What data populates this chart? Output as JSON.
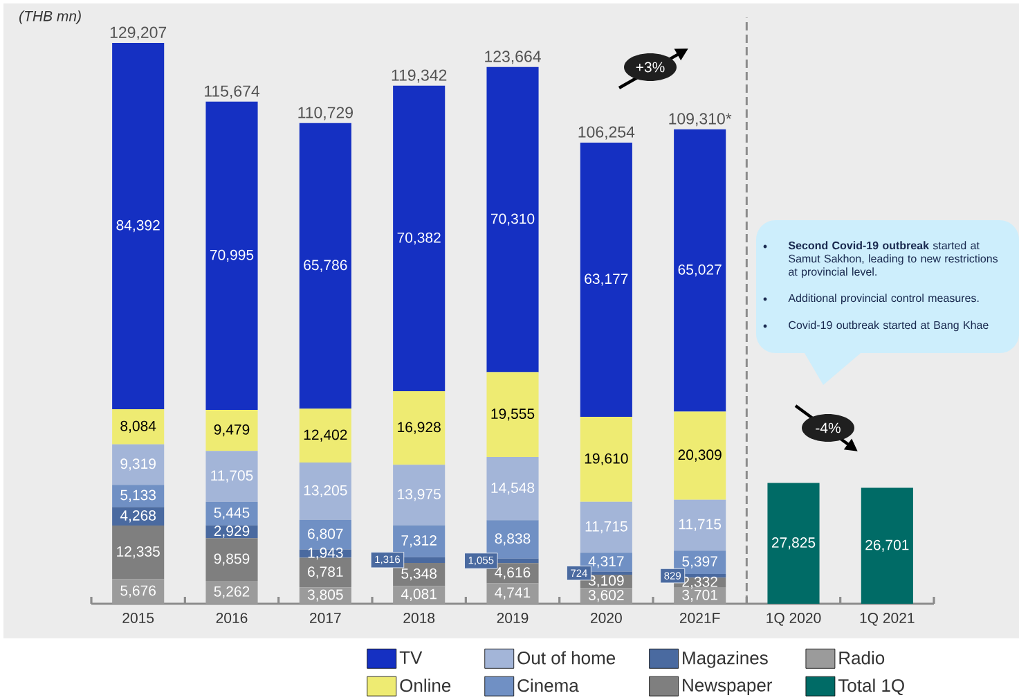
{
  "chart_data": {
    "type": "bar",
    "stacked": true,
    "ylabel": "(THB mn)",
    "categories": [
      "2015",
      "2016",
      "2017",
      "2018",
      "2019",
      "2020",
      "2021F",
      "1Q 2020",
      "1Q 2021"
    ],
    "series": [
      {
        "name": "Radio",
        "color": "#9b9b9b",
        "values": [
          5676,
          5262,
          3805,
          4081,
          4741,
          3602,
          3701,
          null,
          null
        ],
        "value_labels": [
          "5,676",
          "5,262",
          "3,805",
          "4,081",
          "4,741",
          "3,602",
          "3,701",
          null,
          null
        ]
      },
      {
        "name": "Newspaper",
        "color": "#7f7f7f",
        "values": [
          12335,
          9859,
          6781,
          5348,
          4616,
          3109,
          2332,
          null,
          null
        ],
        "value_labels": [
          "12,335",
          "9,859",
          "6,781",
          "5,348",
          "4,616",
          "3,109",
          "2,332",
          null,
          null
        ]
      },
      {
        "name": "Magazines",
        "color": "#4a6aa0",
        "values": [
          4268,
          2929,
          1943,
          1316,
          1055,
          724,
          829,
          null,
          null
        ],
        "value_labels": [
          "4,268",
          "2,929",
          "1,943",
          "1,316",
          "1,055",
          "724",
          "829",
          null,
          null
        ]
      },
      {
        "name": "Cinema",
        "color": "#7090c4",
        "values": [
          5133,
          5445,
          6807,
          7312,
          8838,
          4317,
          5397,
          null,
          null
        ],
        "value_labels": [
          "5,133",
          "5,445",
          "6,807",
          "7,312",
          "8,838",
          "4,317",
          "5,397",
          null,
          null
        ]
      },
      {
        "name": "Out of home",
        "color": "#a3b5d8",
        "values": [
          9319,
          11705,
          13205,
          13975,
          14548,
          11715,
          11715,
          null,
          null
        ],
        "value_labels": [
          "9,319",
          "11,705",
          "13,205",
          "13,975",
          "14,548",
          "11,715",
          "11,715",
          null,
          null
        ]
      },
      {
        "name": "Online",
        "color": "#eeeb72",
        "values": [
          8084,
          9479,
          12402,
          16928,
          19555,
          19610,
          20309,
          null,
          null
        ],
        "value_labels": [
          "8,084",
          "9,479",
          "12,402",
          "16,928",
          "19,555",
          "19,610",
          "20,309",
          null,
          null
        ]
      },
      {
        "name": "TV",
        "color": "#1530c2",
        "values": [
          84392,
          70995,
          65786,
          70382,
          70310,
          63177,
          65027,
          null,
          null
        ],
        "value_labels": [
          "84,392",
          "70,995",
          "65,786",
          "70,382",
          "70,310",
          "63,177",
          "65,027",
          null,
          null
        ]
      },
      {
        "name": "Total 1Q",
        "color": "#006b66",
        "values": [
          null,
          null,
          null,
          null,
          null,
          null,
          null,
          27825,
          26701
        ],
        "value_labels": [
          null,
          null,
          null,
          null,
          null,
          null,
          null,
          "27,825",
          "26,701"
        ]
      }
    ],
    "totals": [
      "129,207",
      "115,674",
      "110,729",
      "119,342",
      "123,664",
      "106,254",
      "109,310*",
      null,
      null
    ],
    "legend": "bottom",
    "annotations": [
      "+3%",
      "-4%",
      "**Second Covid-19 outbreak** started at Samut Sakhon, leading to new restrictions at provincial level.",
      "Additional provincial control measures.",
      "Covid-19 outbreak started at Bang Khae"
    ]
  }
}
